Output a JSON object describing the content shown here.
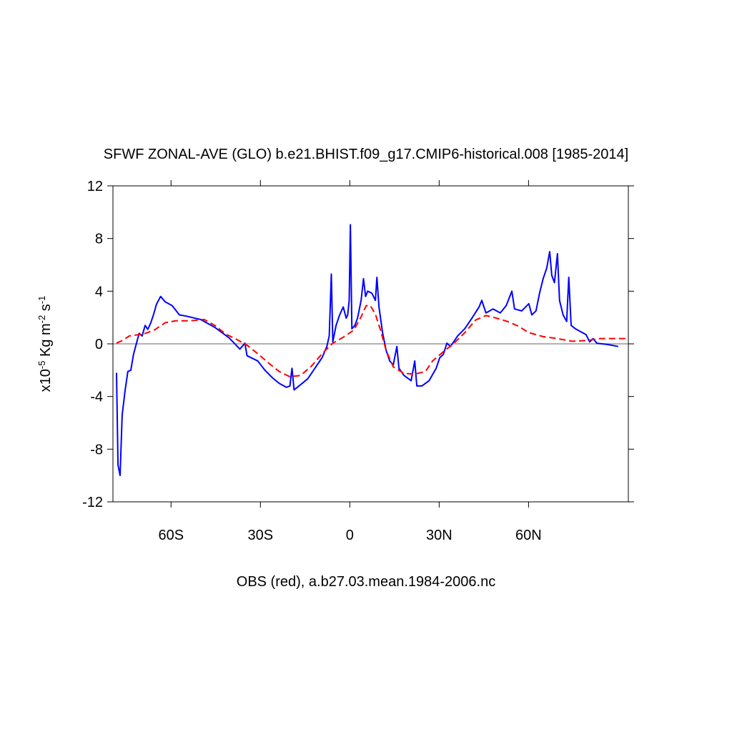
{
  "chart_data": {
    "type": "line",
    "title": "SFWF ZONAL-AVE (GLO) b.e21.BHIST.f09_g17.CMIP6-historical.008 [1985-2014]",
    "x_label": "OBS (red), a.b27.03.mean.1984-2006.nc",
    "y_label_parts": [
      {
        "text": "x10"
      },
      {
        "text": "-5",
        "sup": true
      },
      {
        "text": " Kg m"
      },
      {
        "text": "-2",
        "sup": true
      },
      {
        "text": " s"
      },
      {
        "text": "-1",
        "sup": true
      }
    ],
    "xlim": [
      -79.5,
      93.5
    ],
    "xticks": [
      {
        "value": -60,
        "label": "60S"
      },
      {
        "value": -30,
        "label": "30S"
      },
      0,
      {
        "value": 30,
        "label": "30N"
      },
      {
        "value": 60,
        "label": "60N"
      }
    ],
    "ylim": [
      -12,
      12
    ],
    "yticks": [
      -12,
      -8,
      -4,
      0,
      4,
      8,
      12
    ],
    "reference_line": 0,
    "series": [
      {
        "color": "#0000ff",
        "dash": false,
        "x": [
          -78.3,
          -77.8,
          -77.1,
          -76.4,
          -75.4,
          -74.5,
          -73.5,
          -72.6,
          -71.6,
          -70.7,
          -69.7,
          -68.7,
          -67.8,
          -66.8,
          -65.9,
          -64.9,
          -63.5,
          -62.0,
          -59.6,
          -57.2,
          -54.8,
          -50.1,
          -45.3,
          -40.5,
          -36.9,
          -35.2,
          -34.5,
          -30.9,
          -28.5,
          -26.1,
          -23.7,
          -21.3,
          -20.1,
          -19.4,
          -18.7,
          -16.5,
          -14.1,
          -11.7,
          -9.3,
          -7.7,
          -6.9,
          -6.2,
          -5.7,
          -4.6,
          -3.4,
          -2.2,
          -1.2,
          -0.7,
          -0.2,
          0.2,
          0.7,
          1.7,
          2.6,
          3.8,
          4.6,
          5.3,
          6.0,
          7.4,
          8.6,
          9.1,
          9.8,
          11.0,
          12.2,
          13.4,
          14.6,
          15.8,
          16.5,
          18.2,
          20.6,
          21.8,
          22.5,
          24.2,
          26.6,
          29.0,
          30.2,
          31.4,
          32.6,
          33.8,
          36.2,
          38.6,
          41.0,
          43.4,
          44.3,
          45.7,
          48.1,
          50.5,
          52.5,
          54.4,
          55.3,
          57.7,
          60.1,
          61.1,
          62.5,
          63.7,
          64.9,
          66.1,
          67.1,
          67.8,
          68.7,
          69.7,
          70.4,
          71.6,
          72.8,
          73.5,
          74.3,
          75.7,
          78.1,
          79.3,
          80.5,
          81.7,
          82.9,
          86.5,
          90.1
        ],
        "values": [
          -2.2,
          -9.2,
          -10,
          -5.4,
          -3.5,
          -2.1,
          -2,
          -0.8,
          0.05,
          0.8,
          0.6,
          1.4,
          1.1,
          1.6,
          2.2,
          3.0,
          3.6,
          3.2,
          2.9,
          2.2,
          2.1,
          1.85,
          1.25,
          0.45,
          -0.4,
          0.05,
          -0.9,
          -1.3,
          -2,
          -2.55,
          -3,
          -3.3,
          -3.2,
          -1.85,
          -3.5,
          -3.1,
          -2.65,
          -1.85,
          -1.05,
          -0.2,
          0.6,
          5.3,
          0.15,
          1.4,
          2.2,
          2.8,
          1.95,
          2.2,
          3.3,
          9.05,
          1.15,
          1.4,
          1.95,
          3.3,
          4.95,
          3.6,
          4.0,
          3.85,
          3.3,
          5.05,
          2.8,
          0.85,
          -0.5,
          -1.3,
          -1.6,
          -0.2,
          -1.85,
          -2.4,
          -2.8,
          -1.3,
          -3.2,
          -3.2,
          -2.8,
          -1.85,
          -1.05,
          -0.8,
          0.05,
          -0.2,
          0.6,
          1.15,
          1.95,
          2.8,
          3.3,
          2.35,
          2.65,
          2.35,
          2.9,
          4.0,
          2.65,
          2.5,
          3.05,
          2.2,
          2.5,
          3.85,
          4.95,
          5.75,
          7,
          5.2,
          4.65,
          6.85,
          3.3,
          2.2,
          1.7,
          5.05,
          1.4,
          1.15,
          0.85,
          0.7,
          0.15,
          0.4,
          0.05,
          -0.05,
          -0.2
        ]
      },
      {
        "color": "#ff0000",
        "dash": true,
        "x": [
          -78.3,
          -76.4,
          -74,
          -69.2,
          -65.6,
          -62,
          -58.4,
          -53.7,
          -48.9,
          -45.3,
          -41.7,
          -38.1,
          -34.5,
          -30.9,
          -27.3,
          -23.7,
          -20.1,
          -16.5,
          -12.9,
          -9.3,
          -5.7,
          -2.2,
          1.4,
          3.8,
          5.5,
          6.9,
          8.6,
          10.3,
          12.2,
          14.6,
          18.2,
          21.8,
          25.4,
          27.8,
          31.4,
          35,
          38.6,
          42.2,
          45.7,
          49.3,
          52.9,
          56.5,
          60.1,
          64.9,
          69.7,
          74.5,
          79.3,
          84.1,
          93.2
        ],
        "values": [
          0.05,
          0.25,
          0.6,
          0.75,
          1.05,
          1.6,
          1.75,
          1.75,
          1.85,
          1.4,
          0.75,
          0.35,
          -0.1,
          -0.75,
          -1.45,
          -2.1,
          -2.5,
          -2.4,
          -1.7,
          -0.75,
          0.05,
          0.5,
          1.05,
          2.05,
          2.9,
          2.9,
          2.25,
          1.05,
          -0.5,
          -1.75,
          -2.25,
          -2.3,
          -2.1,
          -1.3,
          -0.6,
          0.05,
          0.85,
          1.8,
          2.15,
          1.95,
          1.7,
          1.35,
          0.85,
          0.55,
          0.4,
          0.2,
          0.25,
          0.4,
          0.4
        ]
      }
    ]
  }
}
